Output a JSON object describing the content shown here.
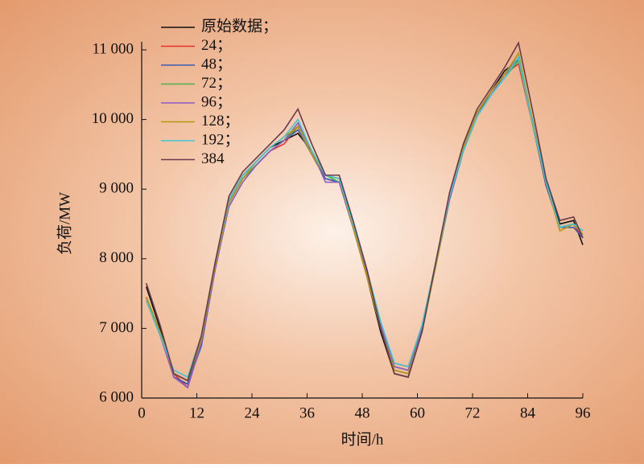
{
  "chart_data": {
    "type": "line",
    "xlabel": "时间/h",
    "ylabel": "负荷/MW",
    "xlim": [
      0,
      96
    ],
    "xticks": [
      0,
      12,
      24,
      36,
      48,
      60,
      72,
      84,
      96
    ],
    "ylim": [
      6000,
      11000
    ],
    "yticks": [
      {
        "value": 6000,
        "label": "6 000"
      },
      {
        "value": 7000,
        "label": "7 000"
      },
      {
        "value": 8000,
        "label": "8 000"
      },
      {
        "value": 9000,
        "label": "9 000"
      },
      {
        "value": 10000,
        "label": "10 000"
      },
      {
        "value": 11000,
        "label": "11 000"
      }
    ],
    "legend": "upper left",
    "x": [
      1,
      4,
      7,
      10,
      13,
      16,
      19,
      22,
      25,
      28,
      31,
      34,
      37,
      40,
      43,
      46,
      49,
      52,
      55,
      58,
      61,
      64,
      67,
      70,
      73,
      76,
      79,
      82,
      85,
      88,
      91,
      94,
      96
    ],
    "series": [
      {
        "name": "原始数据；",
        "color": "#111111",
        "values": [
          7600,
          7000,
          6300,
          6200,
          6850,
          7900,
          8850,
          9200,
          9400,
          9600,
          9700,
          9800,
          9550,
          9200,
          9150,
          8450,
          7750,
          6950,
          6350,
          6300,
          6950,
          7950,
          8900,
          9600,
          10100,
          10400,
          10700,
          10850,
          10000,
          9100,
          8500,
          8550,
          8200
        ]
      },
      {
        "name": "24；",
        "color": "#e8302a",
        "values": [
          7450,
          6950,
          6350,
          6150,
          6800,
          7850,
          8800,
          9150,
          9350,
          9550,
          9650,
          9900,
          9500,
          9150,
          9100,
          8450,
          7750,
          7050,
          6500,
          6450,
          7000,
          7900,
          8850,
          9550,
          10050,
          10350,
          10650,
          10800,
          9950,
          9050,
          8450,
          8500,
          8300
        ]
      },
      {
        "name": "48；",
        "color": "#3a5fb0",
        "values": [
          7450,
          6950,
          6300,
          6200,
          6750,
          7850,
          8800,
          9150,
          9350,
          9550,
          9700,
          9850,
          9500,
          9150,
          9100,
          8450,
          7800,
          7000,
          6400,
          6350,
          6950,
          7900,
          8850,
          9550,
          10050,
          10400,
          10650,
          10850,
          9950,
          9050,
          8450,
          8450,
          8300
        ]
      },
      {
        "name": "72；",
        "color": "#4caf50",
        "values": [
          7400,
          6900,
          6350,
          6250,
          6850,
          7900,
          8800,
          9150,
          9350,
          9550,
          9700,
          9900,
          9500,
          9200,
          9100,
          8500,
          7800,
          7000,
          6450,
          6400,
          7000,
          7900,
          8850,
          9550,
          10050,
          10350,
          10600,
          10850,
          9950,
          9100,
          8450,
          8500,
          8400
        ]
      },
      {
        "name": "96；",
        "color": "#8a5cc7",
        "values": [
          7450,
          6900,
          6300,
          6150,
          6800,
          7850,
          8750,
          9100,
          9350,
          9550,
          9700,
          9950,
          9550,
          9100,
          9100,
          8450,
          7800,
          7050,
          6450,
          6400,
          7000,
          7950,
          8850,
          9550,
          10050,
          10350,
          10650,
          10900,
          9950,
          9100,
          8450,
          8500,
          8350
        ]
      },
      {
        "name": "128；",
        "color": "#b8960c",
        "values": [
          7450,
          6950,
          6350,
          6250,
          6850,
          7900,
          8800,
          9150,
          9400,
          9600,
          9750,
          9900,
          9500,
          9200,
          9150,
          8450,
          7750,
          7000,
          6400,
          6350,
          6950,
          7900,
          8900,
          9600,
          10100,
          10400,
          10650,
          10950,
          10000,
          9100,
          8400,
          8500,
          8350
        ]
      },
      {
        "name": "192；",
        "color": "#3fc7d6",
        "values": [
          7400,
          6900,
          6400,
          6300,
          6900,
          7950,
          8850,
          9200,
          9400,
          9600,
          9750,
          10000,
          9550,
          9200,
          9150,
          8500,
          7850,
          7100,
          6500,
          6450,
          7050,
          7950,
          8900,
          9550,
          10050,
          10350,
          10600,
          10900,
          9950,
          9100,
          8450,
          8500,
          8400
        ]
      },
      {
        "name": "384",
        "color": "#6b3a4a",
        "values": [
          7650,
          7050,
          6350,
          6250,
          6900,
          7950,
          8900,
          9250,
          9450,
          9650,
          9850,
          10150,
          9650,
          9200,
          9200,
          8550,
          7850,
          7000,
          6350,
          6300,
          6950,
          7950,
          8950,
          9650,
          10150,
          10450,
          10750,
          11100,
          10150,
          9150,
          8550,
          8600,
          8300
        ]
      }
    ]
  }
}
